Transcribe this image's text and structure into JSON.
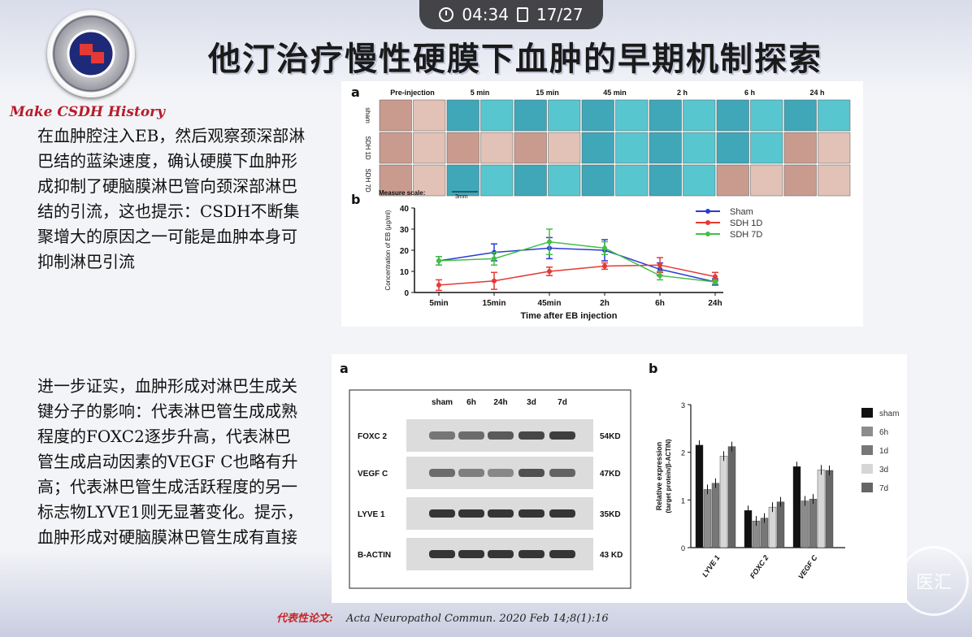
{
  "status_bar": {
    "time": "04:34",
    "page": "17/27"
  },
  "slide": {
    "title": "他汀治疗慢性硬膜下血肿的早期机制探索",
    "brand": "Make CSDH History",
    "paragraph1": "在血肿腔注入EB，然后观察颈深部淋巴结的蓝染速度，确认硬膜下血肿形成抑制了硬脑膜淋巴管向颈深部淋巴结的引流，这也提示：CSDH不断集聚增大的原因之一可能是血肿本身可抑制淋巴引流",
    "paragraph2": "进一步证实，血肿形成对淋巴生成关键分子的影响：代表淋巴管生成成熟程度的FOXC2逐步升高，代表淋巴管生成启动因素的VEGF C也略有升高；代表淋巴管生成活跃程度的另一标志物LYVE1则无显著变化。提示，血肿形成对硬脑膜淋巴管生成有直接影响",
    "citation_label": "代表性论文:",
    "citation": "Acta Neuropathol Commun. 2020 Feb 14;8(1):16",
    "watermark": "医汇"
  },
  "figure_top": {
    "panel_a": "a",
    "panel_b": "b",
    "columns": [
      "Pre-injection",
      "5 min",
      "15 min",
      "45 min",
      "2 h",
      "6 h",
      "24 h"
    ],
    "rows": [
      "sham",
      "SDH 1D",
      "SDH 7D"
    ],
    "measure_scale": "Measure scale:",
    "scale_value": "3mm"
  },
  "figure_bottom": {
    "panel_a": "a",
    "panel_b": "b",
    "lanes": [
      "sham",
      "6h",
      "24h",
      "3d",
      "7d"
    ],
    "proteins": [
      {
        "name": "FOXC 2",
        "kd": "54KD"
      },
      {
        "name": "VEGF C",
        "kd": "47KD"
      },
      {
        "name": "LYVE 1",
        "kd": "35KD"
      },
      {
        "name": "B-ACTIN",
        "kd": "43 KD"
      }
    ]
  },
  "chart_data": [
    {
      "type": "line",
      "x": [
        "5min",
        "15min",
        "45min",
        "2h",
        "6h",
        "24h"
      ],
      "xlabel": "Time after EB injection",
      "ylabel": "Concentration of EB (μg/ml)",
      "ylim": [
        0,
        40
      ],
      "yticks": [
        0,
        10,
        20,
        30,
        40
      ],
      "legend_position": "right",
      "series": [
        {
          "name": "Sham",
          "color": "#2b3bd6",
          "values": [
            15,
            19,
            21,
            20,
            11,
            5
          ],
          "errors": [
            2,
            4,
            5,
            5,
            3,
            1.5
          ]
        },
        {
          "name": "SDH 1D",
          "color": "#e53935",
          "values": [
            3.5,
            5.5,
            10,
            12.5,
            13,
            7.5
          ],
          "errors": [
            2.5,
            4,
            2,
            1.5,
            3.5,
            2
          ]
        },
        {
          "name": "SDH 7D",
          "color": "#43c043",
          "values": [
            15,
            16,
            24,
            21,
            8,
            5
          ],
          "errors": [
            2,
            3,
            6,
            3,
            2,
            1
          ]
        }
      ]
    },
    {
      "type": "bar",
      "categories": [
        "LYVE 1",
        "FOXC 2",
        "VEGF C"
      ],
      "ylabel": "Relative expression",
      "ylabel2": "(target protein/β-ACTIN)",
      "ylim": [
        0,
        3
      ],
      "yticks": [
        0,
        1,
        2,
        3
      ],
      "legend_position": "right",
      "series": [
        {
          "name": "sham",
          "color": "#111111",
          "values": [
            2.15,
            0.78,
            1.7
          ]
        },
        {
          "name": "6h",
          "color": "#8c8c8c",
          "values": [
            1.22,
            0.56,
            0.98
          ]
        },
        {
          "name": "1d",
          "color": "#777777",
          "values": [
            1.35,
            0.62,
            1.02
          ]
        },
        {
          "name": "3d",
          "color": "#d6d6d6",
          "values": [
            1.92,
            0.85,
            1.63
          ]
        },
        {
          "name": "7d",
          "color": "#666666",
          "values": [
            2.12,
            0.96,
            1.62
          ]
        }
      ]
    }
  ]
}
